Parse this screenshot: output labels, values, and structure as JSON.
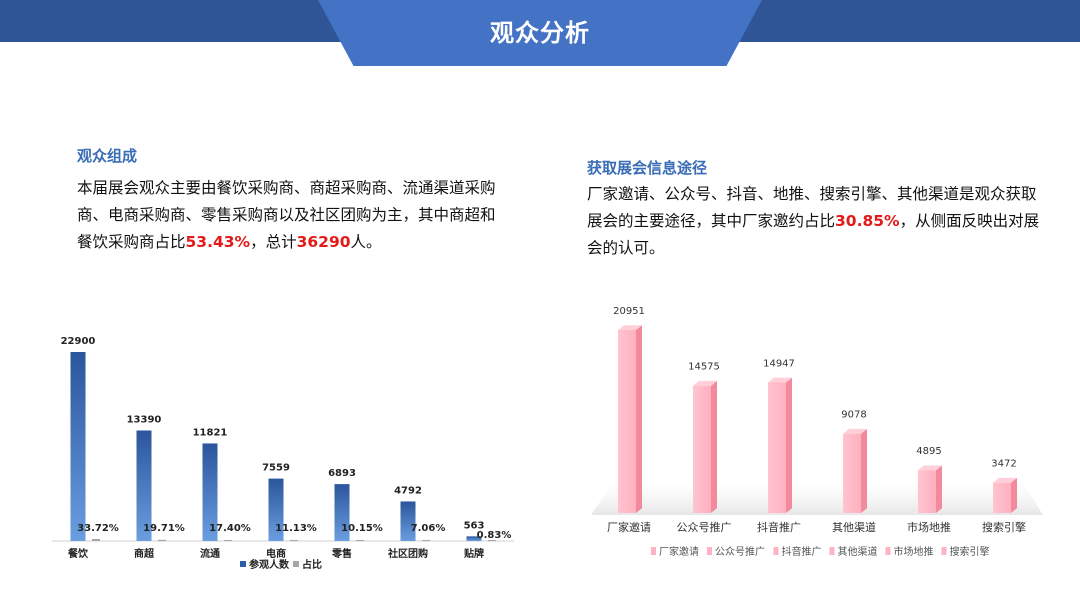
{
  "header": {
    "title": "观众分析"
  },
  "left": {
    "heading": "观众组成",
    "text_1": "本届展会观众主要由餐饮采购商、商超采购商、流通渠道采购商、电商采购商、零售采购商以及社区团购为主，其中商超和餐饮采购商占比",
    "highlight_pct": "53.43%",
    "text_2": "，总计",
    "highlight_total": "36290",
    "text_3": "人。"
  },
  "right": {
    "heading": "获取展会信息途径",
    "text_1": "厂家邀请、公众号、抖音、地推、搜索引擎、其他渠道是观众获取展会的主要途径，其中厂家邀约占比",
    "highlight_pct": "30.85%",
    "text_2": "，从侧面反映出对展会的认可。"
  },
  "chart_data": [
    {
      "type": "bar",
      "categories": [
        "餐饮",
        "商超",
        "流通",
        "电商",
        "零售",
        "社区团购",
        "贴牌"
      ],
      "series": [
        {
          "name": "参观人数",
          "values": [
            22900,
            13390,
            11821,
            7559,
            6893,
            4792,
            563
          ]
        },
        {
          "name": "占比",
          "values": [
            33.72,
            19.71,
            17.4,
            11.13,
            10.15,
            7.06,
            0.83
          ],
          "labels": [
            "33.72%",
            "19.71%",
            "17.40%",
            "11.13%",
            "10.15%",
            "7.06%",
            "0.83%"
          ]
        }
      ],
      "ylim": [
        0,
        24000
      ],
      "legend": "bottom",
      "colors": {
        "bar": "#2f5ea8",
        "bar_light": "#5b8fd6",
        "pct": "#a6a6a6"
      }
    },
    {
      "type": "bar",
      "categories": [
        "厂家邀请",
        "公众号推广",
        "抖音推广",
        "其他渠道",
        "市场地推",
        "搜索引擎"
      ],
      "values": [
        20951,
        14575,
        14947,
        9078,
        4895,
        3472
      ],
      "ylim": [
        0,
        22000
      ],
      "legend": "bottom",
      "colors": {
        "bar": "#ffb3c1",
        "bar_dark": "#f2899c"
      }
    }
  ]
}
